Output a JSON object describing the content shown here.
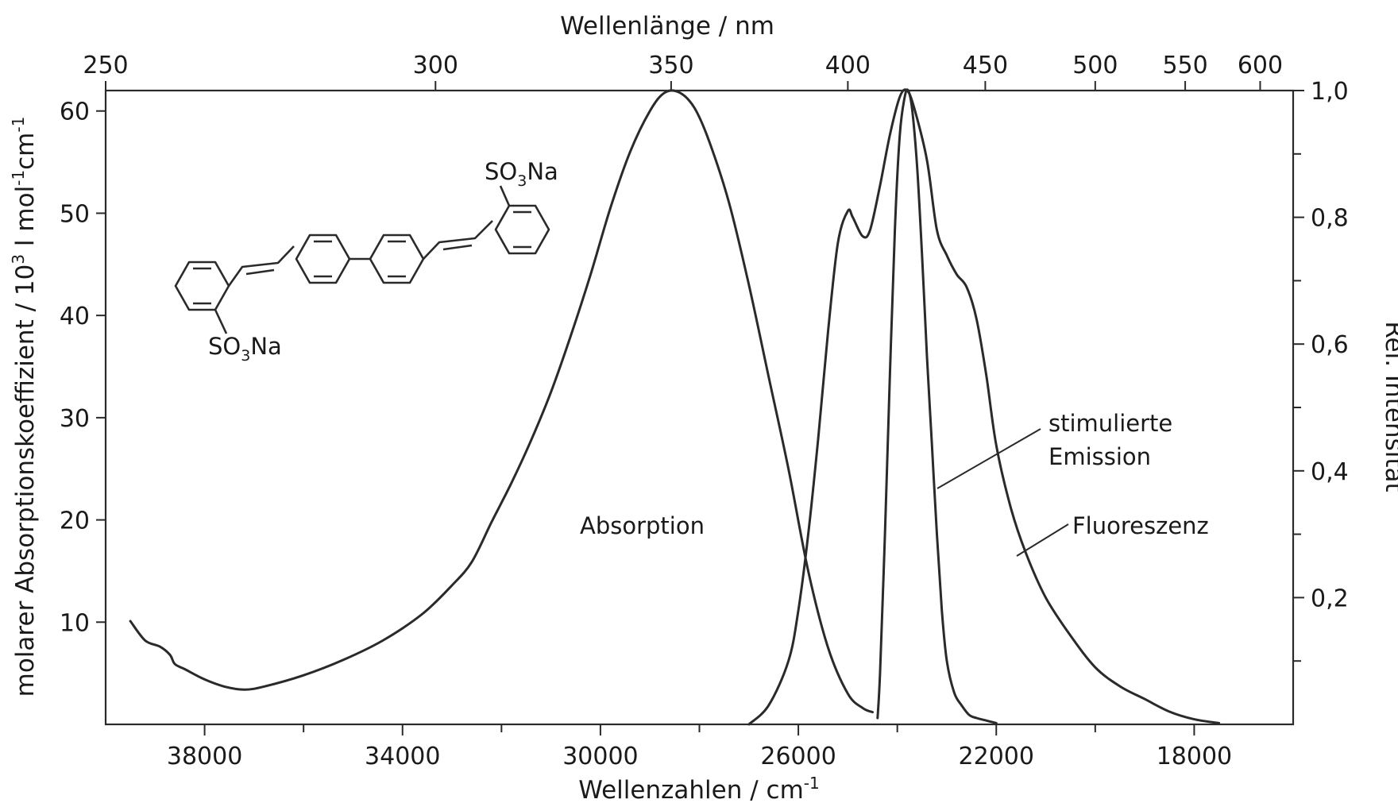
{
  "chart_data": {
    "type": "line",
    "title": "",
    "x_bottom": {
      "label_main": "Wellenzahlen / cm",
      "label_sup": "-1",
      "lim": [
        40000,
        16000
      ],
      "major_ticks": [
        38000,
        34000,
        30000,
        26000,
        22000,
        18000
      ],
      "minor_ticks": [
        36000,
        32000,
        28000,
        24000,
        20000
      ]
    },
    "x_top": {
      "label": "Wellenlänge / nm",
      "ticks": [
        {
          "nm": 250,
          "label": "250"
        },
        {
          "nm": 300,
          "label": "300"
        },
        {
          "nm": 350,
          "label": "350"
        },
        {
          "nm": 400,
          "label": "400"
        },
        {
          "nm": 450,
          "label": "450"
        },
        {
          "nm": 500,
          "label": "500"
        },
        {
          "nm": 550,
          "label": "550"
        },
        {
          "nm": 600,
          "label": "600"
        }
      ]
    },
    "y_left": {
      "label_a": "molarer Absorptionskoeffizient / 10",
      "label_b": "3",
      "label_c": " l  mol",
      "label_d": "-1",
      "label_e": "cm",
      "label_f": "-1",
      "lim": [
        0,
        62
      ],
      "ticks": [
        10,
        20,
        30,
        40,
        50,
        60
      ]
    },
    "y_right": {
      "label": "Rel. Intensität",
      "lim": [
        0,
        1.0
      ],
      "ticks": [
        {
          "v": 0.2,
          "label": "0,2"
        },
        {
          "v": 0.4,
          "label": "0,4"
        },
        {
          "v": 0.6,
          "label": "0,6"
        },
        {
          "v": 0.8,
          "label": "0,8"
        },
        {
          "v": 1.0,
          "label": "1,0"
        }
      ],
      "minor": [
        0.1,
        0.3,
        0.5,
        0.7,
        0.9
      ]
    },
    "series": [
      {
        "name": "Absorption",
        "axis": "left",
        "points": [
          [
            39500,
            10.1
          ],
          [
            39200,
            8.2
          ],
          [
            38900,
            7.6
          ],
          [
            38700,
            6.8
          ],
          [
            38600,
            5.9
          ],
          [
            38400,
            5.4
          ],
          [
            38000,
            4.4
          ],
          [
            37600,
            3.7
          ],
          [
            37200,
            3.4
          ],
          [
            36800,
            3.7
          ],
          [
            36000,
            4.8
          ],
          [
            35200,
            6.3
          ],
          [
            34400,
            8.2
          ],
          [
            33600,
            10.8
          ],
          [
            33000,
            13.6
          ],
          [
            32600,
            15.9
          ],
          [
            32200,
            19.8
          ],
          [
            31800,
            23.6
          ],
          [
            31400,
            27.8
          ],
          [
            31000,
            32.5
          ],
          [
            30600,
            38.0
          ],
          [
            30200,
            44.0
          ],
          [
            29800,
            50.5
          ],
          [
            29400,
            56.0
          ],
          [
            29000,
            60.0
          ],
          [
            28700,
            61.8
          ],
          [
            28400,
            61.8
          ],
          [
            28100,
            60.3
          ],
          [
            27800,
            57.0
          ],
          [
            27400,
            51.0
          ],
          [
            27000,
            43.0
          ],
          [
            26600,
            34.0
          ],
          [
            26200,
            25.0
          ],
          [
            25800,
            15.0
          ],
          [
            25400,
            7.5
          ],
          [
            25000,
            3.0
          ],
          [
            24700,
            1.6
          ],
          [
            24500,
            1.2
          ]
        ]
      },
      {
        "name": "Fluoreszenz",
        "axis": "right",
        "points": [
          [
            27000,
            0.0
          ],
          [
            26600,
            0.03
          ],
          [
            26200,
            0.1
          ],
          [
            26000,
            0.18
          ],
          [
            25800,
            0.3
          ],
          [
            25600,
            0.45
          ],
          [
            25400,
            0.62
          ],
          [
            25200,
            0.76
          ],
          [
            25000,
            0.81
          ],
          [
            24900,
            0.8
          ],
          [
            24700,
            0.77
          ],
          [
            24550,
            0.78
          ],
          [
            24350,
            0.85
          ],
          [
            24150,
            0.93
          ],
          [
            23950,
            0.99
          ],
          [
            23800,
            1.0
          ],
          [
            23650,
            0.97
          ],
          [
            23400,
            0.89
          ],
          [
            23200,
            0.78
          ],
          [
            23000,
            0.74
          ],
          [
            22800,
            0.71
          ],
          [
            22600,
            0.69
          ],
          [
            22400,
            0.64
          ],
          [
            22200,
            0.55
          ],
          [
            22000,
            0.44
          ],
          [
            21700,
            0.34
          ],
          [
            21400,
            0.27
          ],
          [
            21000,
            0.2
          ],
          [
            20500,
            0.14
          ],
          [
            20000,
            0.09
          ],
          [
            19500,
            0.06
          ],
          [
            19000,
            0.04
          ],
          [
            18500,
            0.02
          ],
          [
            18000,
            0.008
          ],
          [
            17500,
            0.002
          ]
        ]
      },
      {
        "name": "stimulierte Emission",
        "axis": "right",
        "points": [
          [
            24400,
            0.01
          ],
          [
            24350,
            0.08
          ],
          [
            24250,
            0.3
          ],
          [
            24150,
            0.55
          ],
          [
            24050,
            0.78
          ],
          [
            23950,
            0.93
          ],
          [
            23850,
            0.99
          ],
          [
            23780,
            1.0
          ],
          [
            23700,
            0.97
          ],
          [
            23600,
            0.88
          ],
          [
            23500,
            0.74
          ],
          [
            23400,
            0.58
          ],
          [
            23300,
            0.44
          ],
          [
            23200,
            0.3
          ],
          [
            23100,
            0.18
          ],
          [
            23000,
            0.1
          ],
          [
            22850,
            0.05
          ],
          [
            22700,
            0.03
          ],
          [
            22550,
            0.015
          ],
          [
            22400,
            0.01
          ],
          [
            22200,
            0.006
          ],
          [
            22000,
            0.002
          ]
        ]
      }
    ],
    "annotations": {
      "absorption": "Absorption",
      "stim_line1": "stimulierte",
      "stim_line2": "Emission",
      "fluor": "Fluoreszenz"
    },
    "molecule": {
      "sulfonate_top": "SO",
      "sulfonate_top_sub": "3",
      "sulfonate_top_tail": "Na",
      "sulfonate_bottom": "SO",
      "sulfonate_bottom_sub": "3",
      "sulfonate_bottom_tail": "Na"
    }
  }
}
